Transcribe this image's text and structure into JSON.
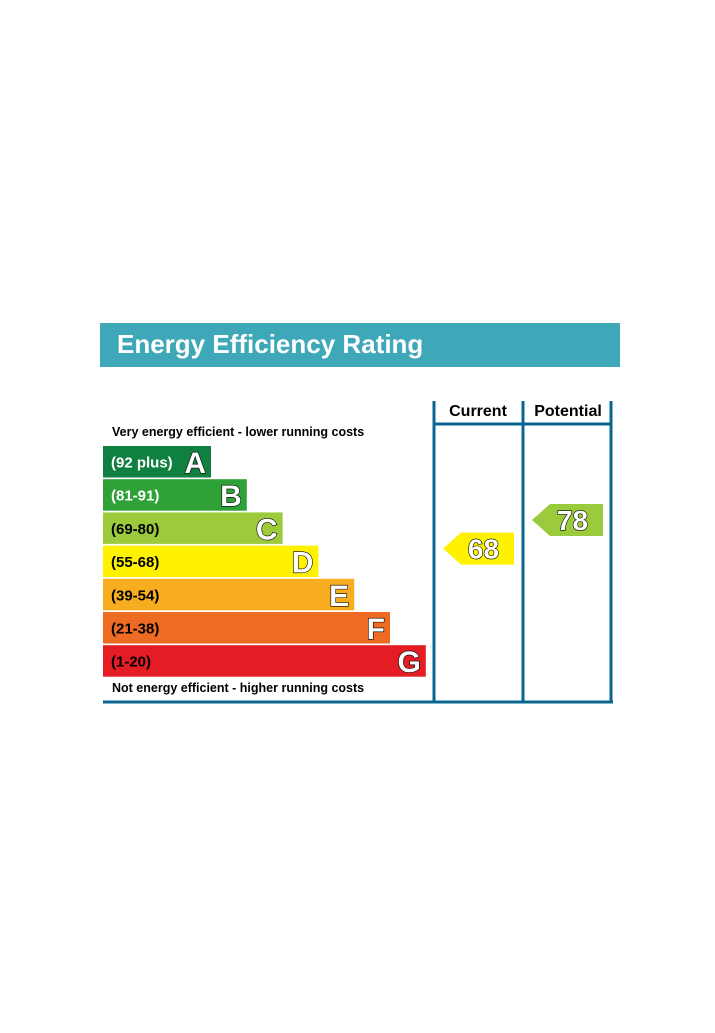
{
  "chart_data": {
    "type": "bar",
    "title": "Energy Efficiency Rating",
    "top_caption": "Very energy efficient - lower running costs",
    "bottom_caption": "Not energy efficient - higher running costs",
    "columns": [
      "Current",
      "Potential"
    ],
    "bands": [
      {
        "letter": "A",
        "range": "(92 plus)",
        "min": 92,
        "max": 100,
        "color": "#0f8040",
        "text_color": "#ffffff"
      },
      {
        "letter": "B",
        "range": "(81-91)",
        "min": 81,
        "max": 91,
        "color": "#2ea236",
        "text_color": "#ffffff"
      },
      {
        "letter": "C",
        "range": "(69-80)",
        "min": 69,
        "max": 80,
        "color": "#9bca3c",
        "text_color": "#000000"
      },
      {
        "letter": "D",
        "range": "(55-68)",
        "min": 55,
        "max": 68,
        "color": "#fff200",
        "text_color": "#000000"
      },
      {
        "letter": "E",
        "range": "(39-54)",
        "min": 39,
        "max": 54,
        "color": "#f7ad1f",
        "text_color": "#000000"
      },
      {
        "letter": "F",
        "range": "(21-38)",
        "min": 21,
        "max": 38,
        "color": "#ee6b24",
        "text_color": "#000000"
      },
      {
        "letter": "G",
        "range": "(1-20)",
        "min": 1,
        "max": 20,
        "color": "#e31d23",
        "text_color": "#000000"
      }
    ],
    "current": {
      "value": 68,
      "band": "D",
      "color": "#fff200"
    },
    "potential": {
      "value": 78,
      "band": "C",
      "color": "#9bca3c"
    },
    "title_color": "#3ea7b8",
    "frame_color": "#0a6490"
  }
}
